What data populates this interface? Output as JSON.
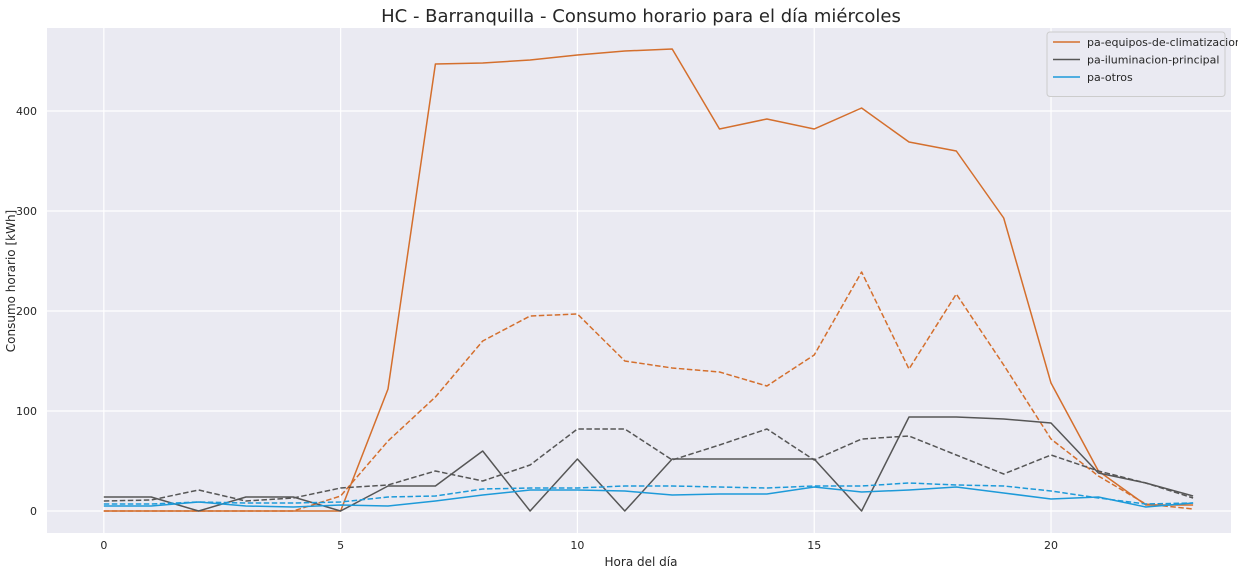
{
  "chart_data": {
    "type": "line",
    "title": "HC - Barranquilla - Consumo horario para el día miércoles",
    "xlabel": "Hora del día",
    "ylabel": "Consumo horario [kWh]",
    "xlim": [
      -1.2,
      23.8
    ],
    "ylim": [
      -22,
      483
    ],
    "xticks": [
      0,
      5,
      10,
      15,
      20
    ],
    "yticks": [
      0,
      100,
      200,
      300,
      400
    ],
    "grid": true,
    "legend_position": "top-right",
    "x": [
      0,
      1,
      2,
      3,
      4,
      5,
      6,
      7,
      8,
      9,
      10,
      11,
      12,
      13,
      14,
      15,
      16,
      17,
      18,
      19,
      20,
      21,
      22,
      23
    ],
    "series": [
      {
        "name": "pa-equipos-de-climatizacion",
        "color": "#d46f2d",
        "style": "solid",
        "values": [
          0,
          0,
          0,
          0,
          0,
          0,
          122,
          447,
          448,
          451,
          456,
          460,
          462,
          382,
          392,
          382,
          403,
          369,
          360,
          293,
          128,
          40,
          6,
          6
        ]
      },
      {
        "name": "",
        "color": "#d46f2d",
        "style": "dashed",
        "values": [
          0,
          0,
          0,
          0,
          0,
          15,
          70,
          114,
          170,
          195,
          197,
          150,
          143,
          139,
          125,
          156,
          239,
          142,
          217,
          146,
          72,
          35,
          7,
          2
        ]
      },
      {
        "name": "pa-iluminacion-principal",
        "color": "#565656",
        "style": "solid",
        "values": [
          14,
          14,
          0,
          14,
          14,
          0,
          25,
          25,
          60,
          0,
          52,
          0,
          52,
          52,
          52,
          52,
          0,
          94,
          94,
          92,
          88,
          38,
          28,
          15
        ]
      },
      {
        "name": "",
        "color": "#565656",
        "style": "dashed",
        "values": [
          10,
          11,
          21,
          10,
          13,
          23,
          26,
          40,
          30,
          46,
          82,
          82,
          51,
          66,
          82,
          51,
          72,
          75,
          56,
          37,
          56,
          40,
          28,
          13
        ]
      },
      {
        "name": "pa-otros",
        "color": "#1d9ad9",
        "style": "solid",
        "values": [
          5,
          5,
          9,
          5,
          4,
          6,
          5,
          10,
          16,
          21,
          21,
          20,
          16,
          17,
          17,
          24,
          19,
          21,
          24,
          18,
          12,
          14,
          4,
          8
        ]
      },
      {
        "name": "",
        "color": "#1d9ad9",
        "style": "dashed",
        "values": [
          7,
          7,
          9,
          8,
          8,
          9,
          14,
          15,
          22,
          23,
          23,
          25,
          25,
          24,
          23,
          25,
          25,
          28,
          26,
          25,
          20,
          13,
          7,
          8
        ]
      }
    ]
  },
  "colors": {
    "plot_background": "#eaeaf2",
    "grid": "#ffffff"
  }
}
